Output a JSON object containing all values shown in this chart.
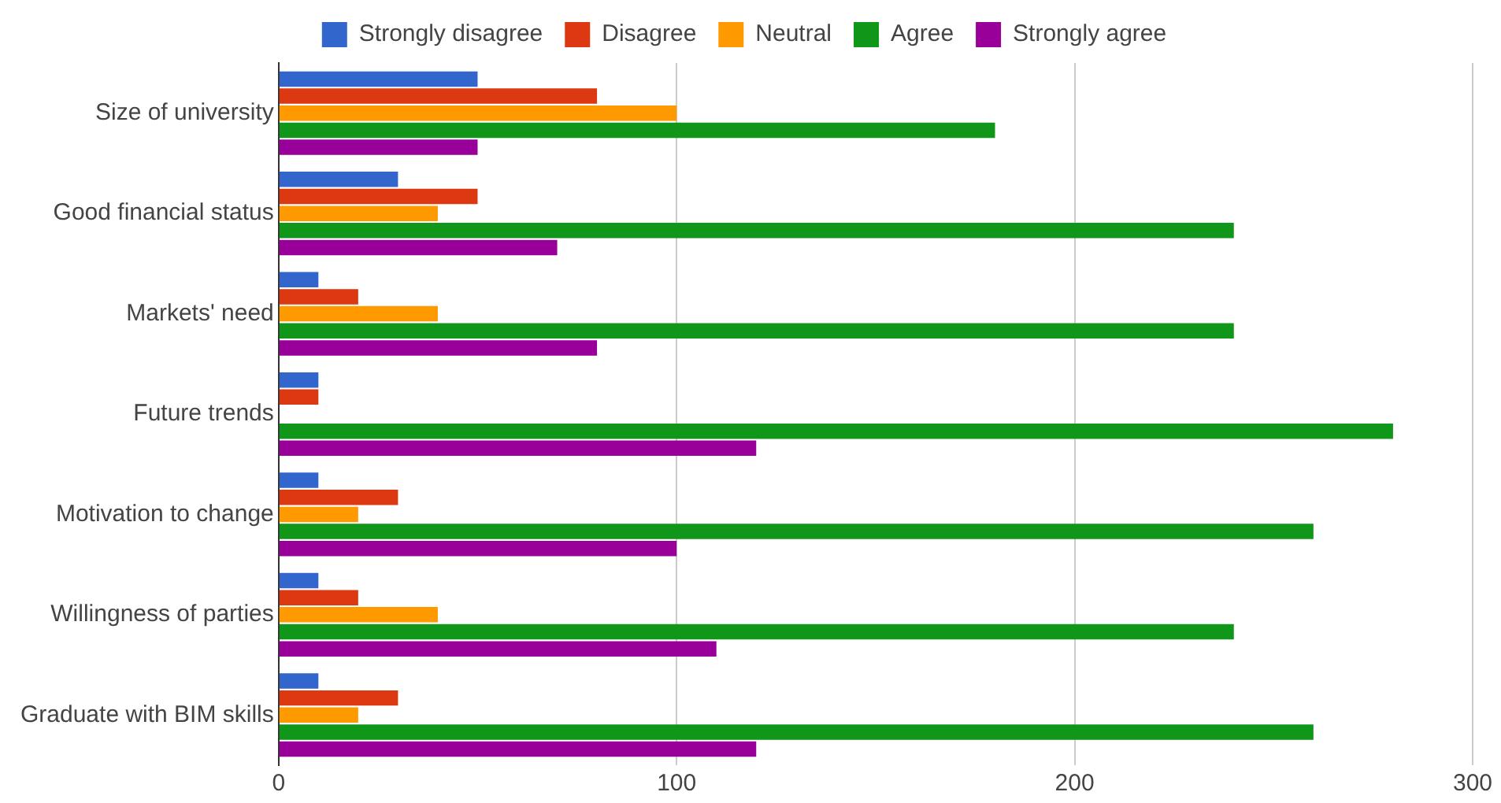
{
  "chart_data": {
    "type": "bar",
    "orientation": "horizontal",
    "categories": [
      "Size of university",
      "Good financial status",
      "Markets' need",
      "Future trends",
      "Motivation to change",
      "Willingness of parties",
      "Graduate with BIM skills"
    ],
    "series": [
      {
        "name": "Strongly disagree",
        "color": "#3366cc",
        "values": [
          50,
          30,
          10,
          10,
          10,
          10,
          10
        ]
      },
      {
        "name": "Disagree",
        "color": "#dc3912",
        "values": [
          80,
          50,
          20,
          10,
          30,
          20,
          30
        ]
      },
      {
        "name": "Neutral",
        "color": "#ff9900",
        "values": [
          100,
          40,
          40,
          0,
          20,
          40,
          20
        ]
      },
      {
        "name": "Agree",
        "color": "#109618",
        "values": [
          180,
          240,
          240,
          280,
          260,
          240,
          260
        ]
      },
      {
        "name": "Strongly agree",
        "color": "#990099",
        "values": [
          50,
          70,
          80,
          120,
          100,
          110,
          120
        ]
      }
    ],
    "xlim": [
      0,
      300
    ],
    "xticks": [
      0,
      100,
      200,
      300
    ],
    "grid": "x",
    "legend": "top"
  }
}
